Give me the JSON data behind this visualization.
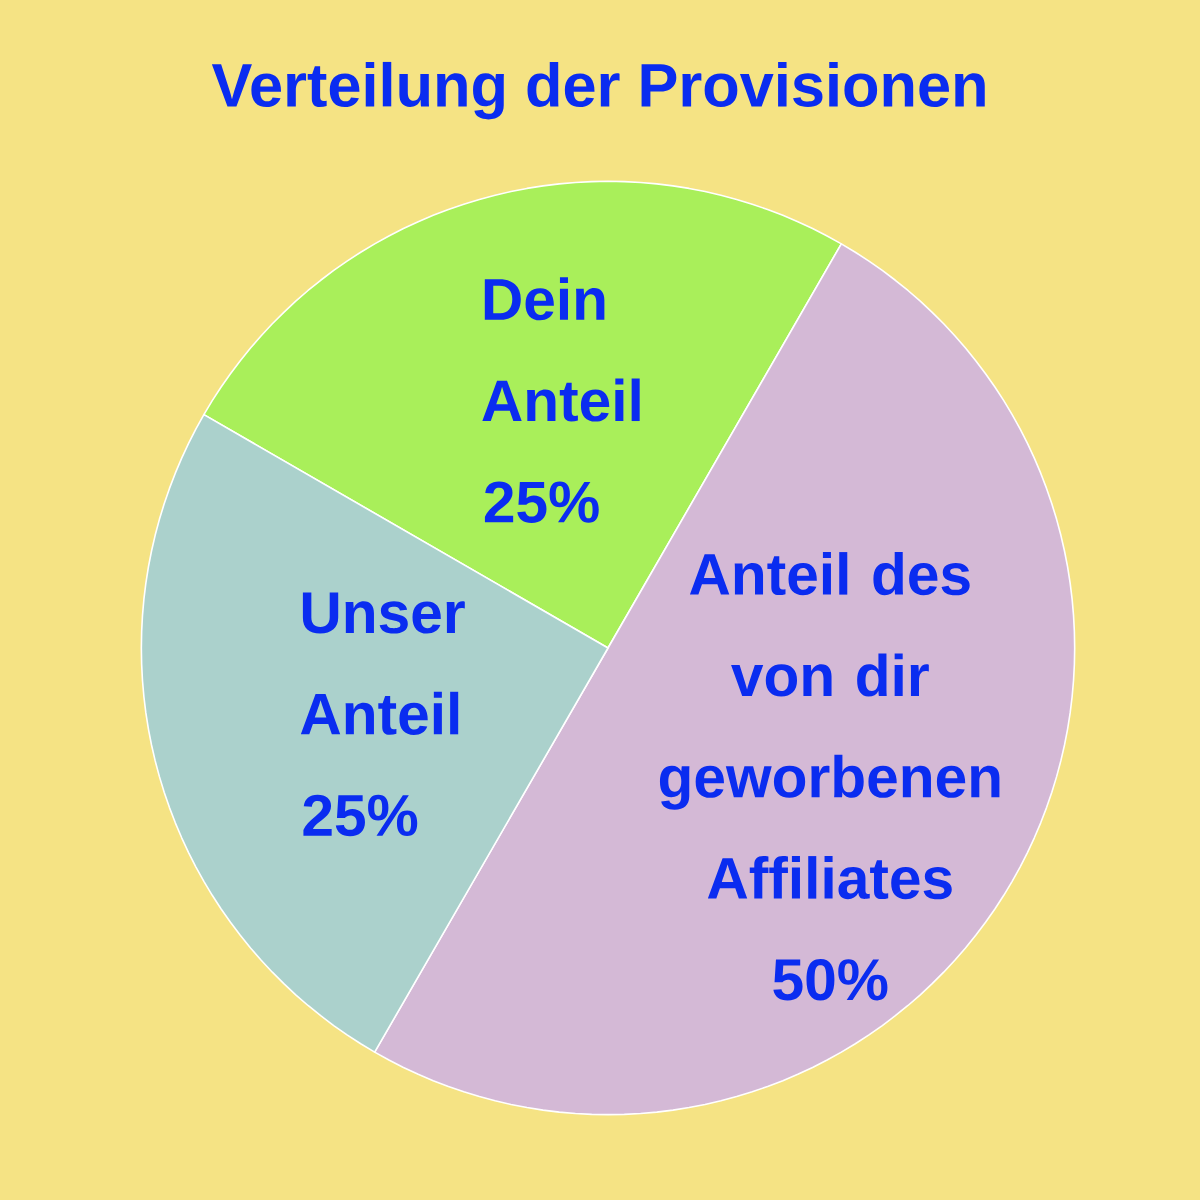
{
  "chart_data": {
    "type": "pie",
    "title": "Verteilung der Provisionen",
    "categories": [
      "Dein Anteil",
      "Anteil des von dir geworbenen Affiliates",
      "Unser Anteil"
    ],
    "values": [
      25,
      50,
      25
    ],
    "colors": [
      "#a9ef5a",
      "#d4b9d6",
      "#abd1cc"
    ],
    "value_labels": [
      "25%",
      "50%",
      "25%"
    ]
  }
}
